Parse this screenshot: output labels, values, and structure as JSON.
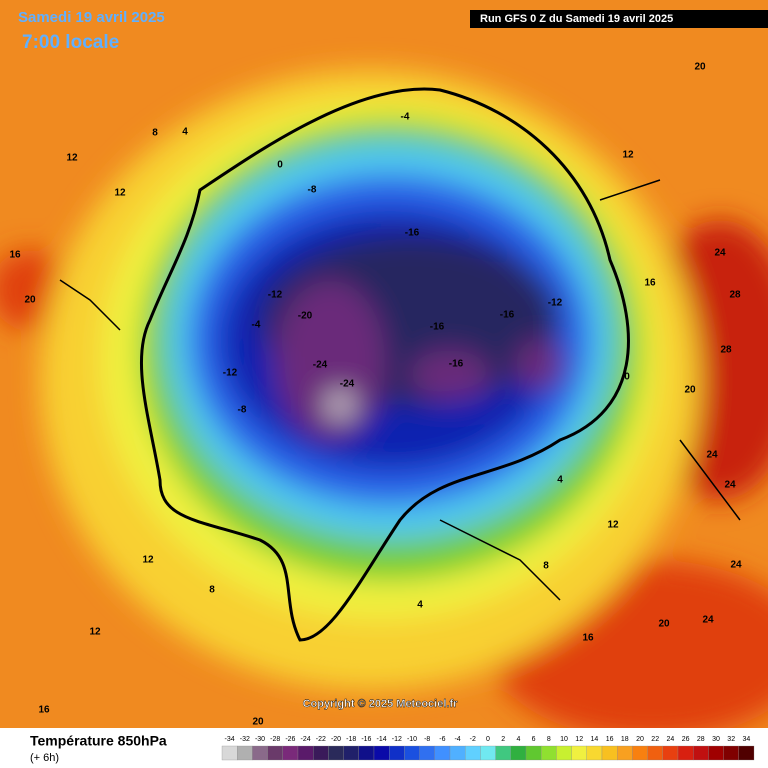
{
  "header": {
    "date": "Samedi 19 avril 2025",
    "time": "7:00 locale",
    "run": "Run GFS 0 Z du Samedi 19 avril 2025"
  },
  "copyright": "Copyright © 2025 Meteociel.fr",
  "legend": {
    "title": "Température 850hPa",
    "subtitle": "(+ 6h)",
    "ticks": [
      -34,
      -32,
      -30,
      -28,
      -26,
      -24,
      -22,
      -20,
      -18,
      -16,
      -14,
      -12,
      -10,
      -8,
      -6,
      -4,
      -2,
      0,
      2,
      4,
      6,
      8,
      10,
      12,
      14,
      16,
      18,
      20,
      22,
      24,
      26,
      28,
      30,
      32,
      34
    ],
    "colors": [
      "#d8d8d8",
      "#b0b0b0",
      "#8a6a8a",
      "#6a3a6a",
      "#7a2a7a",
      "#5a1a6a",
      "#3a1a5a",
      "#2a2a5a",
      "#20206a",
      "#10108a",
      "#0a0aa8",
      "#1030c8",
      "#1a50e0",
      "#3070f0",
      "#4090ff",
      "#50b0ff",
      "#60d0ff",
      "#70e8f0",
      "#40c880",
      "#30b040",
      "#60c830",
      "#90e030",
      "#c8f030",
      "#f0f040",
      "#f8d830",
      "#f8c020",
      "#f8a020",
      "#f88010",
      "#f06010",
      "#e84010",
      "#d82010",
      "#c01010",
      "#a00000",
      "#800000",
      "#500000"
    ]
  },
  "map_labels": [
    "12",
    "12",
    "16",
    "20",
    "20",
    "24",
    "28",
    "28",
    "24",
    "24",
    "20",
    "16",
    "12",
    "8",
    "4",
    "0",
    "-4",
    "-8",
    "-12",
    "-12",
    "-16",
    "-16",
    "-16",
    "-20",
    "-24",
    "-24",
    "-16",
    "-12",
    "-8",
    "-4",
    "0",
    "4",
    "8",
    "12",
    "16",
    "20",
    "24",
    "24",
    "12",
    "8",
    "4",
    "12",
    "16",
    "20"
  ]
}
